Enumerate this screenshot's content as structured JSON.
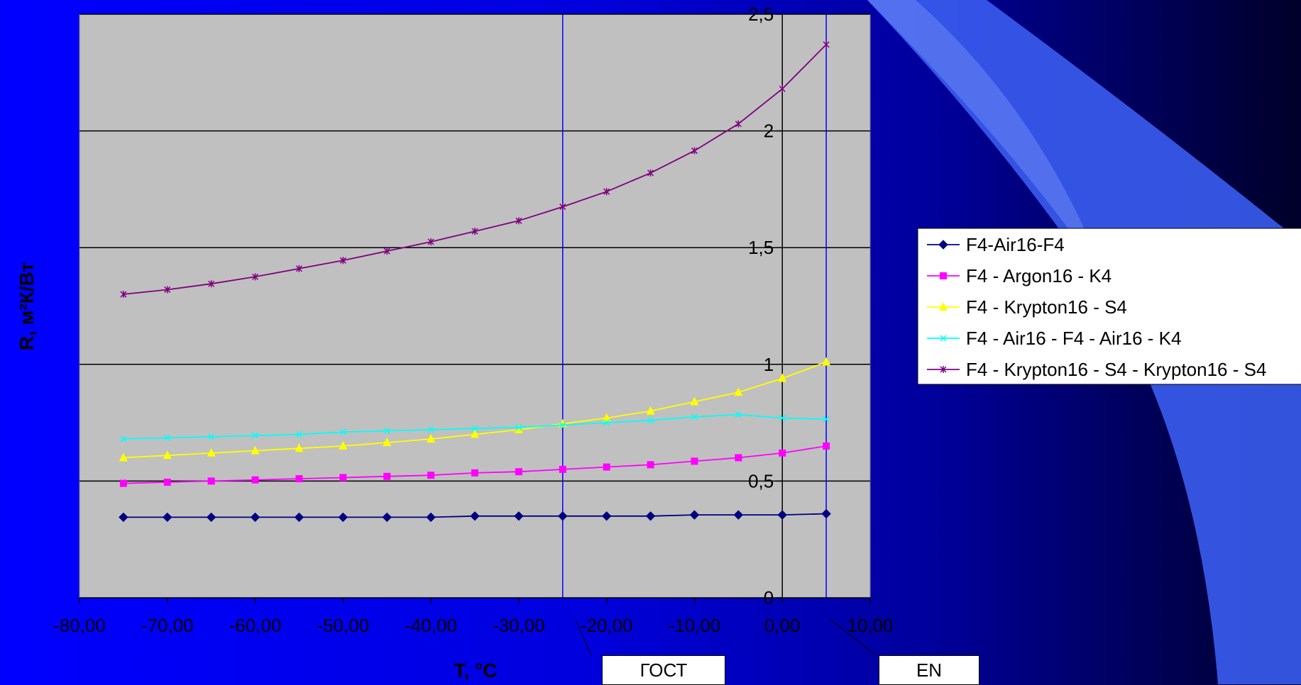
{
  "colors": {
    "background_left": "#0000ff",
    "background_right": "#000028",
    "plot_area": "#c0c0c0",
    "grid": "#000000",
    "ref_line": "#0000ff",
    "swoosh": "#3a5cf0"
  },
  "chart_data": {
    "type": "line",
    "xlabel": "T, °C",
    "ylabel": "R, м²К/Вт",
    "xlim": [
      -80,
      10
    ],
    "ylim": [
      0,
      2.5
    ],
    "x_ticks": [
      "-80,00",
      "-70,00",
      "-60,00",
      "-50,00",
      "-40,00",
      "-30,00",
      "-20,00",
      "-10,00",
      "0,00",
      "10,00"
    ],
    "y_ticks": [
      "0",
      "0,5",
      "1",
      "1,5",
      "2",
      "2,5"
    ],
    "grid": "horizontal",
    "legend_position": "right",
    "x": [
      -75,
      -70,
      -65,
      -60,
      -55,
      -50,
      -45,
      -40,
      -35,
      -30,
      -25,
      -20,
      -15,
      -10,
      -5,
      0,
      5
    ],
    "series": [
      {
        "name": "F4-Air16-F4",
        "color": "#000080",
        "marker": "diamond",
        "values": [
          0.345,
          0.345,
          0.345,
          0.345,
          0.345,
          0.345,
          0.345,
          0.345,
          0.35,
          0.35,
          0.35,
          0.35,
          0.35,
          0.355,
          0.355,
          0.355,
          0.36
        ]
      },
      {
        "name": "F4 - Argon16 - K4",
        "color": "#ff00ff",
        "marker": "square",
        "values": [
          0.49,
          0.495,
          0.5,
          0.505,
          0.51,
          0.515,
          0.52,
          0.525,
          0.535,
          0.54,
          0.55,
          0.56,
          0.57,
          0.585,
          0.6,
          0.62,
          0.65
        ]
      },
      {
        "name": "F4 - Krypton16 - S4",
        "color": "#ffff00",
        "marker": "triangle",
        "values": [
          0.6,
          0.61,
          0.62,
          0.63,
          0.64,
          0.65,
          0.665,
          0.68,
          0.7,
          0.72,
          0.745,
          0.77,
          0.8,
          0.84,
          0.88,
          0.94,
          1.01
        ]
      },
      {
        "name": "F4 - Air16 - F4 - Air16 - K4",
        "color": "#00ffff",
        "marker": "x",
        "values": [
          0.68,
          0.685,
          0.69,
          0.695,
          0.7,
          0.71,
          0.715,
          0.72,
          0.725,
          0.73,
          0.74,
          0.75,
          0.76,
          0.775,
          0.785,
          0.77,
          0.765
        ]
      },
      {
        "name": "F4 - Krypton16 - S4 - Krypton16 - S4",
        "color": "#800080",
        "marker": "star",
        "values": [
          1.3,
          1.32,
          1.345,
          1.375,
          1.41,
          1.445,
          1.485,
          1.525,
          1.57,
          1.615,
          1.675,
          1.74,
          1.82,
          1.915,
          2.03,
          2.18,
          2.37
        ]
      }
    ],
    "reference_lines": [
      {
        "x": -25,
        "label": "ГОСТ"
      },
      {
        "x": 5,
        "label": "EN"
      }
    ]
  }
}
